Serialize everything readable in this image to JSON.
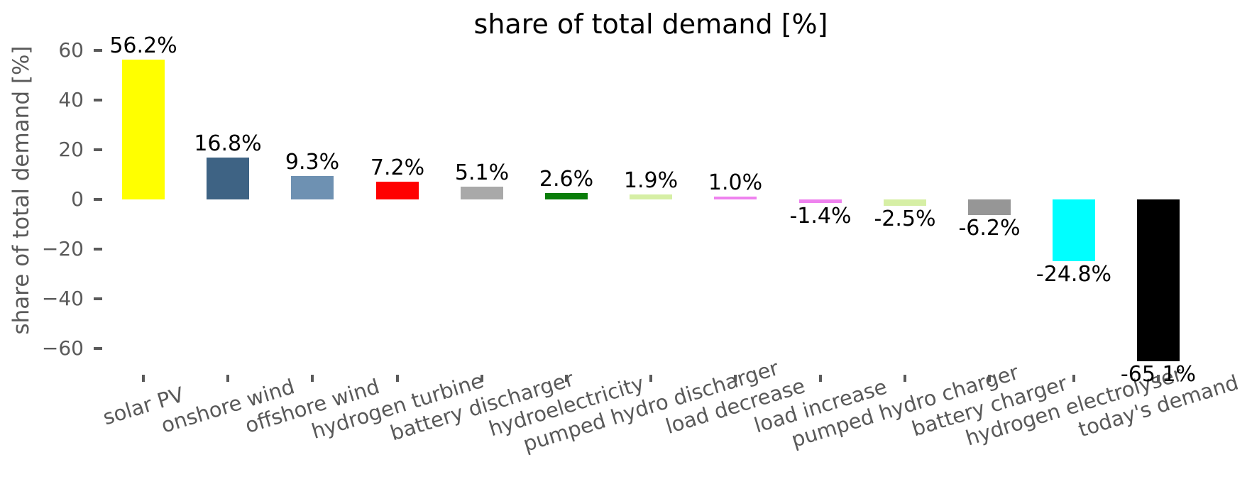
{
  "chart_data": {
    "type": "bar",
    "title": "share of total demand [%]",
    "ylabel": "share of total demand [%]",
    "xlabel": "",
    "categories": [
      "solar PV",
      "onshore wind",
      "offshore wind",
      "hydrogen turbine",
      "battery discharger",
      "hydroelectricity",
      "pumped hydro discharger",
      "load decrease",
      "load increase",
      "pumped hydro charger",
      "battery charger",
      "hydrogen electrolyser",
      "today's demand"
    ],
    "values": [
      56.2,
      16.8,
      9.3,
      7.2,
      5.1,
      2.6,
      1.9,
      1.0,
      -1.4,
      -2.5,
      -6.2,
      -24.8,
      -65.1
    ],
    "bar_labels": [
      "56.2%",
      "16.8%",
      "9.3%",
      "7.2%",
      "5.1%",
      "2.6%",
      "1.9%",
      "1.0%",
      "-1.4%",
      "-2.5%",
      "-6.2%",
      "-24.8%",
      "-65.1%"
    ],
    "bar_colors": [
      "#ffff00",
      "#3e6384",
      "#6e91b2",
      "#ff0000",
      "#a9a9a9",
      "#0a7d0a",
      "#d6efa5",
      "#ee82ee",
      "#ee82ee",
      "#d6efa5",
      "#969696",
      "#00ffff",
      "#000000"
    ],
    "yticks": [
      {
        "value": 60,
        "label": "60"
      },
      {
        "value": 40,
        "label": "40"
      },
      {
        "value": 20,
        "label": "20"
      },
      {
        "value": 0,
        "label": "0"
      },
      {
        "value": -20,
        "label": "−20"
      },
      {
        "value": -40,
        "label": "−40"
      },
      {
        "value": -60,
        "label": "−60"
      }
    ],
    "ylim": [
      -71,
      63
    ],
    "grid": false,
    "legend": false
  },
  "colors": {
    "axis_text": "#5a5a5a",
    "value_label_text": "#000000",
    "background": "#ffffff"
  }
}
